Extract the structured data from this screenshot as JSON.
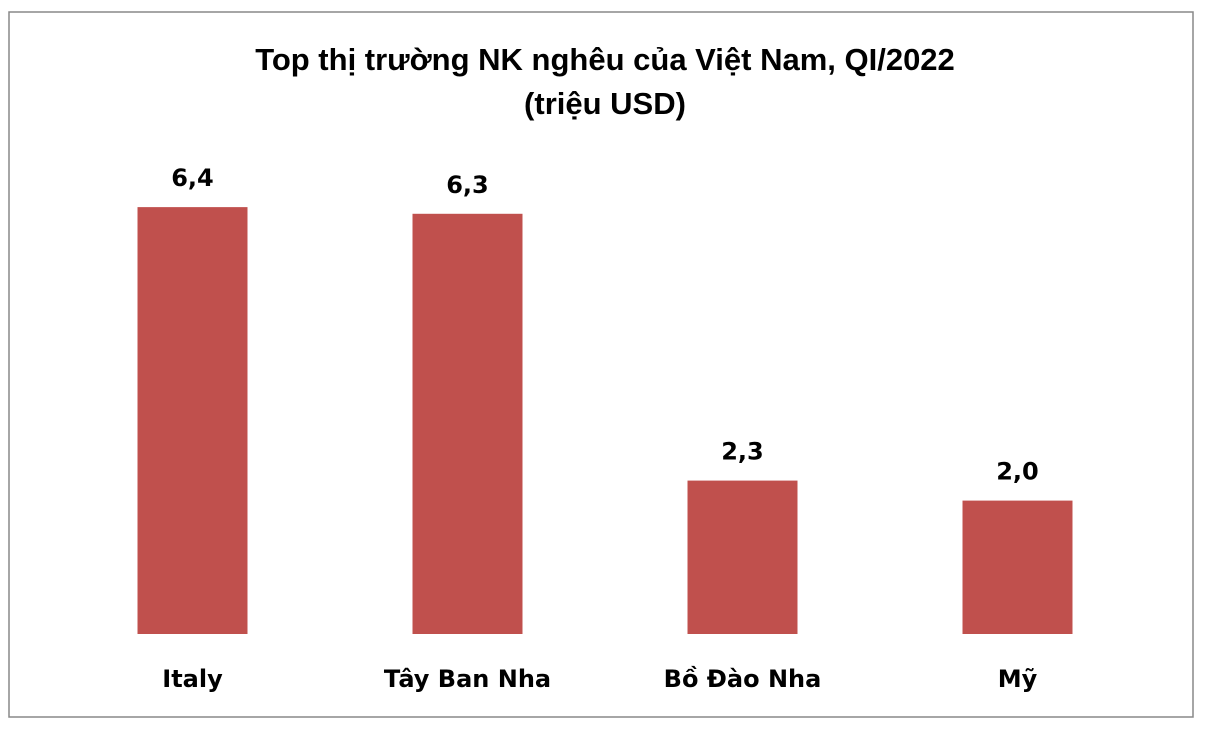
{
  "chart_data": {
    "type": "bar",
    "title": "Top thị trường NK nghêu của Việt Nam, QI/2022",
    "subtitle": "(triệu USD)",
    "categories": [
      "Italy",
      "Tây Ban Nha",
      "Bồ Đào Nha",
      "Mỹ"
    ],
    "values": [
      6.4,
      6.3,
      2.3,
      2.0
    ],
    "value_labels": [
      "6,4",
      "6,3",
      "2,3",
      "2,0"
    ],
    "color": "#c0504d"
  }
}
